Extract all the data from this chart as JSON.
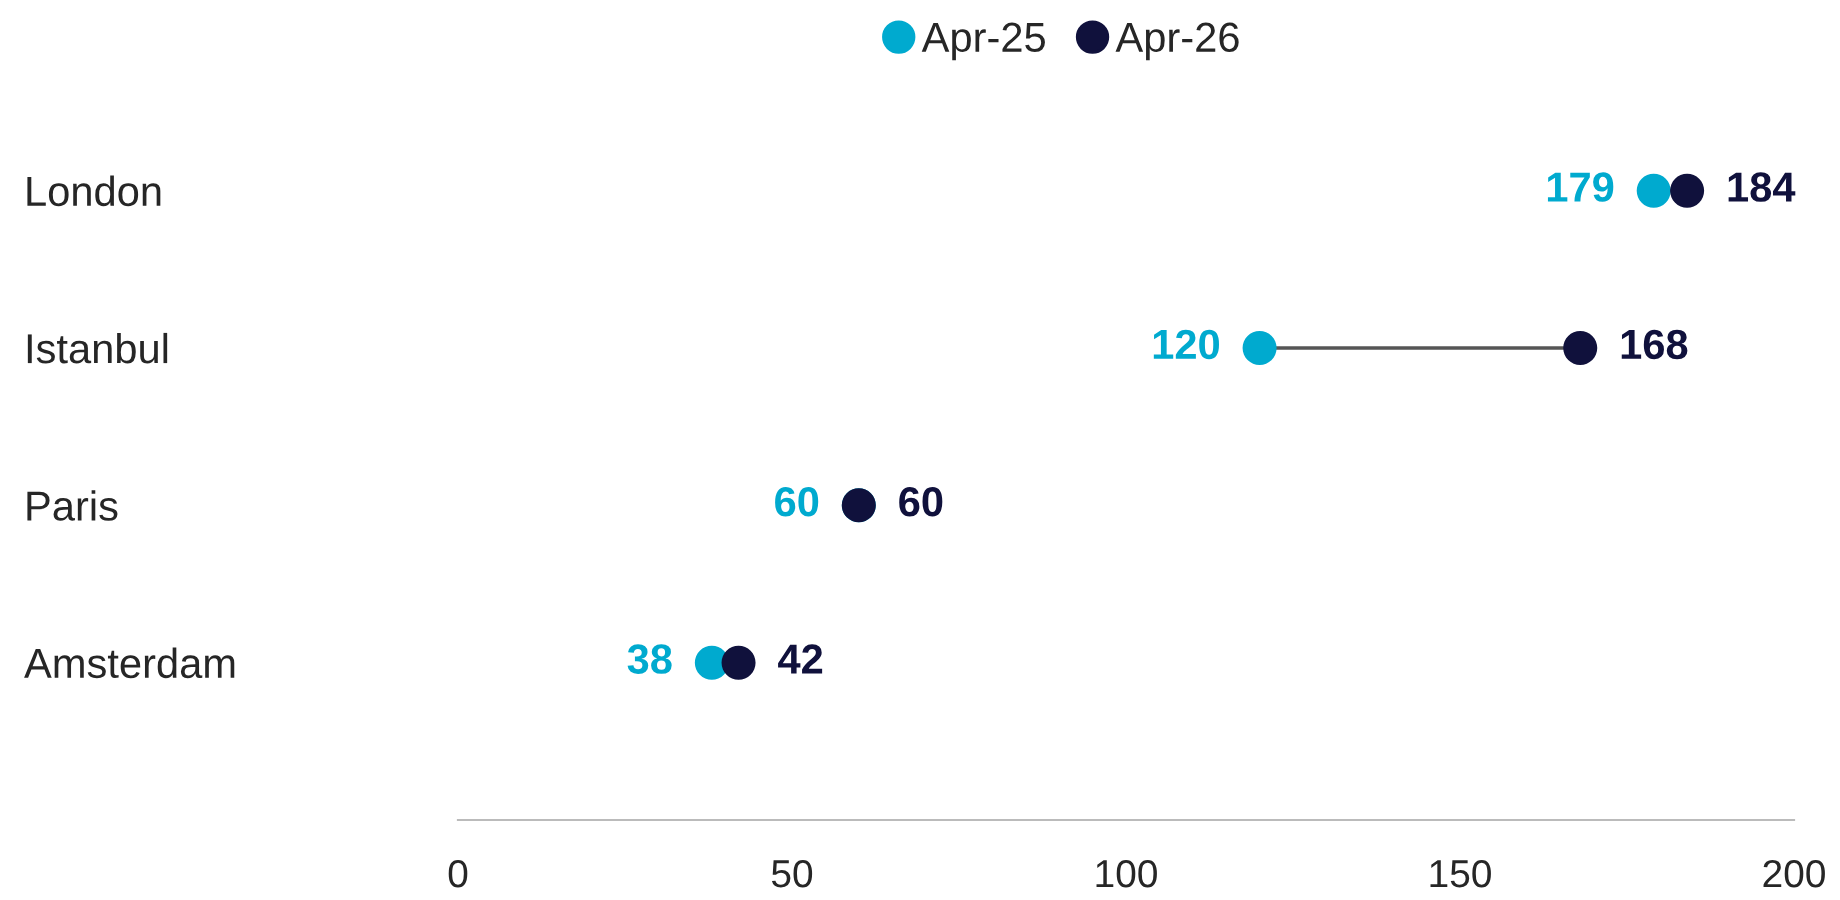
{
  "chart_data": {
    "type": "scatter",
    "orientation": "horizontal",
    "categories": [
      "London",
      "Istanbul",
      "Paris",
      "Amsterdam"
    ],
    "series": [
      {
        "name": "Apr-25",
        "color": "#00aacf",
        "values": [
          179,
          120,
          60,
          38
        ]
      },
      {
        "name": "Apr-26",
        "color": "#10113c",
        "values": [
          184,
          168,
          60,
          42
        ]
      }
    ],
    "xlim": [
      0,
      200
    ],
    "xticks": [
      0,
      50,
      100,
      150,
      200
    ],
    "marker": "circle",
    "data_labels": true,
    "legend": "top",
    "grid": false
  }
}
